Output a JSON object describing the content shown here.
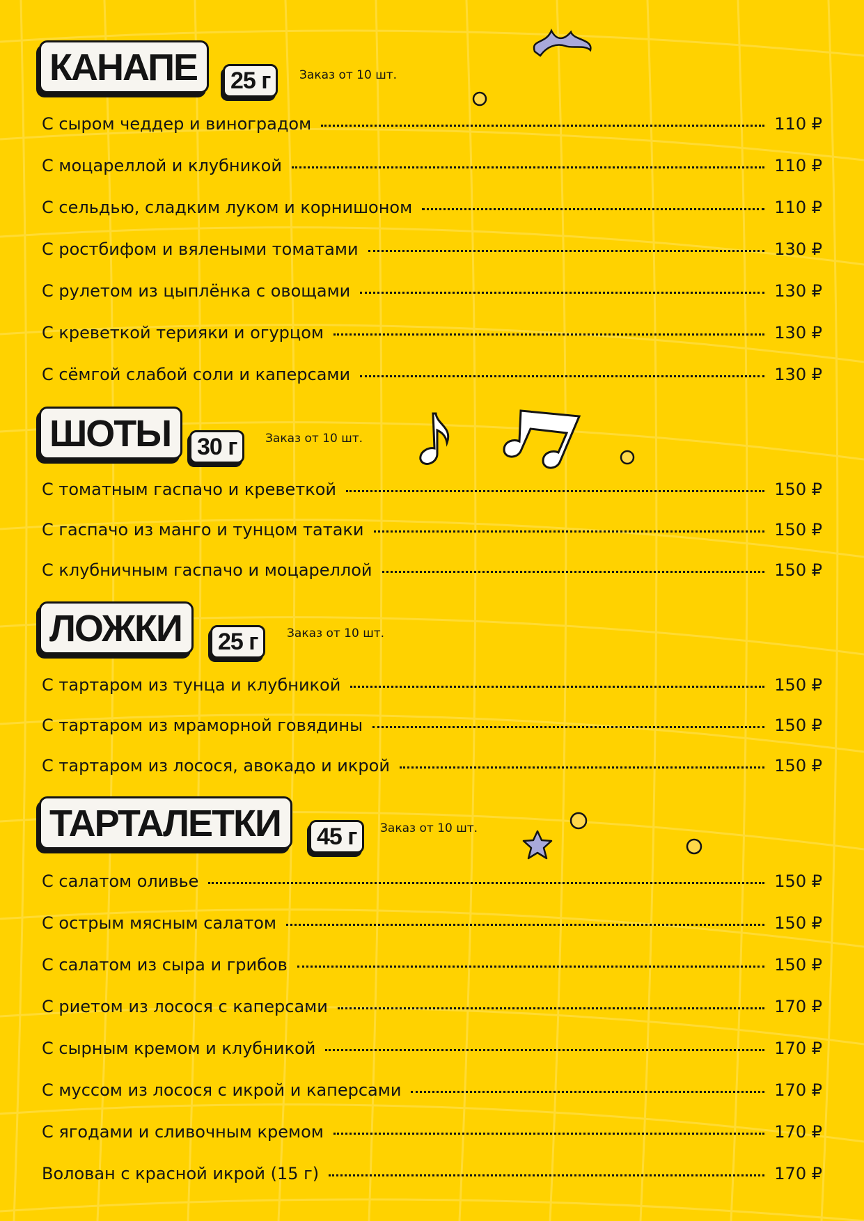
{
  "colors": {
    "background": "#FFD200",
    "text": "#141414",
    "label_bg": "#F7F5F0",
    "accent_lilac": "#A9A9DA"
  },
  "sections": [
    {
      "title": "КАНАПЕ",
      "weight": "25 г",
      "note": "Заказ от 10 шт.",
      "items": [
        {
          "name": "С сыром чеддер и виноградом",
          "price": "110 ₽"
        },
        {
          "name": "С моцареллой и клубникой",
          "price": "110 ₽"
        },
        {
          "name": "С сельдью, сладким луком и корнишоном",
          "price": "110 ₽"
        },
        {
          "name": "С ростбифом и вялеными томатами",
          "price": "130 ₽"
        },
        {
          "name": "С рулетом из цыплёнка с овощами",
          "price": "130 ₽"
        },
        {
          "name": "С креветкой терияки и огурцом",
          "price": "130 ₽"
        },
        {
          "name": "С сёмгой слабой соли и каперсами",
          "price": "130 ₽"
        }
      ]
    },
    {
      "title": "ШОТЫ",
      "weight": "30 г",
      "note": "Заказ от 10 шт.",
      "items": [
        {
          "name": "С томатным гаспачо и креветкой",
          "price": "150 ₽"
        },
        {
          "name": "С гаспачо из манго и тунцом татаки",
          "price": "150 ₽"
        },
        {
          "name": "С клубничным гаспачо и моцареллой",
          "price": "150 ₽"
        }
      ]
    },
    {
      "title": "ЛОЖКИ",
      "weight": "25 г",
      "note": "Заказ от 10 шт.",
      "items": [
        {
          "name": "С тартаром из тунца и клубникой",
          "price": "150 ₽"
        },
        {
          "name": "С тартаром из мраморной говядины",
          "price": "150 ₽"
        },
        {
          "name": "С тартаром из лосося, авокадо и икрой",
          "price": "150 ₽"
        }
      ]
    },
    {
      "title": "ТАРТАЛЕТКИ",
      "weight": "45 г",
      "note": "Заказ от 10 шт.",
      "items": [
        {
          "name": "С салатом оливье",
          "price": "150 ₽"
        },
        {
          "name": "С острым мясным салатом",
          "price": "150 ₽"
        },
        {
          "name": "С салатом из сыра и грибов",
          "price": "150 ₽"
        },
        {
          "name": "С риетом из лосося с каперсами",
          "price": "170 ₽"
        },
        {
          "name": "С сырным кремом и клубникой",
          "price": "170 ₽"
        },
        {
          "name": "С муссом из лосося с икрой и каперсами",
          "price": "170 ₽"
        },
        {
          "name": "С ягодами и сливочным кремом",
          "price": "170 ₽"
        },
        {
          "name": "Волован с красной икрой (15 г)",
          "price": "170 ₽"
        }
      ]
    }
  ],
  "decorations": [
    "squiggle-shape",
    "circle",
    "music-note-icon",
    "double-music-note-icon",
    "circle",
    "circle",
    "star-shape",
    "circle"
  ]
}
